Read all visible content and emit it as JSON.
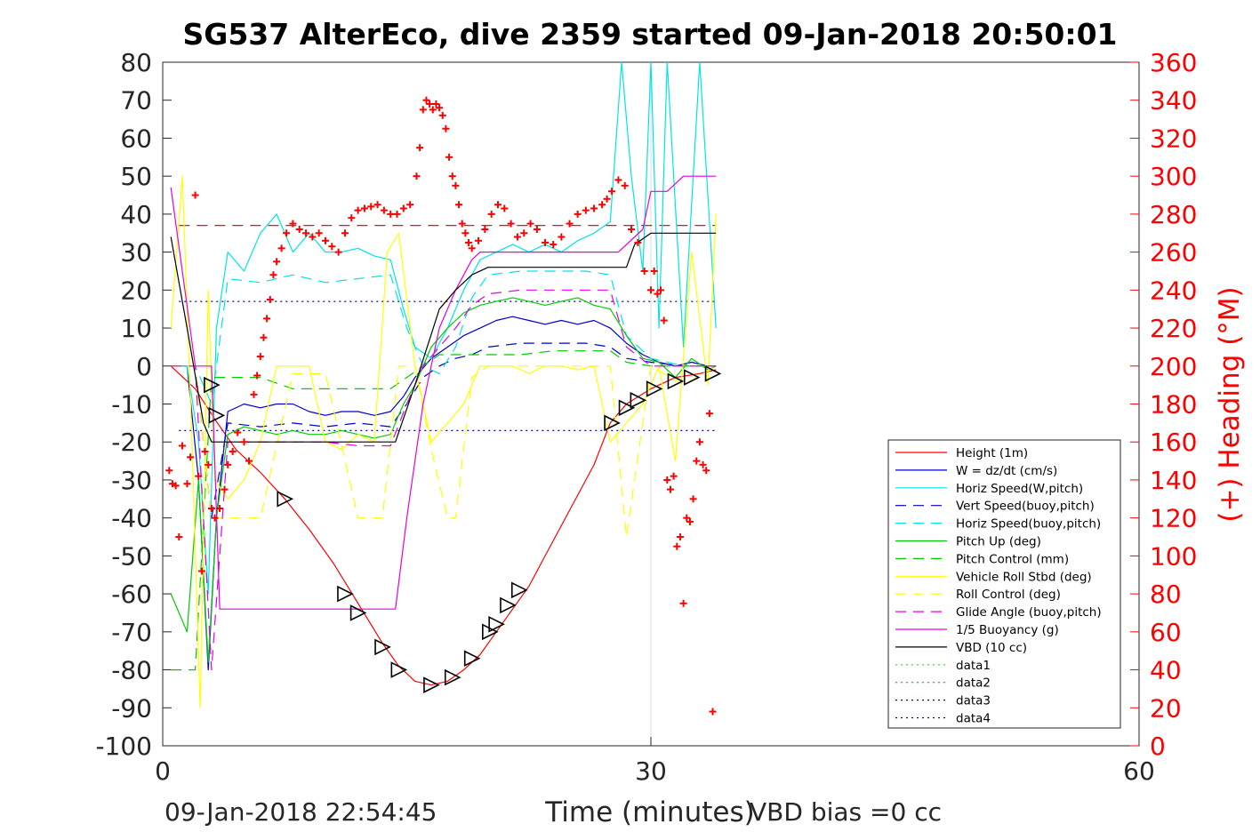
{
  "chart_data": {
    "type": "line",
    "title": "SG537 AlterEco, dive 2359 started 09-Jan-2018 20:50:01",
    "xlabel": "Time (minutes)",
    "ylabel": "",
    "y2label": "(+) Heading (°M)",
    "xlim": [
      0,
      60
    ],
    "ylim": [
      -100,
      80
    ],
    "y2lim": [
      0,
      360
    ],
    "xticks": [
      0,
      30,
      60
    ],
    "yticks": [
      -100,
      -90,
      -80,
      -70,
      -60,
      -50,
      -40,
      -30,
      -20,
      -10,
      0,
      10,
      20,
      30,
      40,
      50,
      60,
      70,
      80
    ],
    "y2ticks": [
      0,
      20,
      40,
      60,
      80,
      100,
      120,
      140,
      160,
      180,
      200,
      220,
      240,
      260,
      280,
      300,
      320,
      340,
      360
    ],
    "grid": "x-only at 30",
    "legend_position": "bottom-right",
    "footer_left": "09-Jan-2018 22:54:45",
    "footer_right": "VBD bias =0 cc",
    "colors": {
      "axis": "#262626",
      "heading": "#ff0000"
    },
    "series": [
      {
        "name": "Height (1m)",
        "color": "#ff0000",
        "dash": "solid",
        "x": [
          0.5,
          2,
          3.2,
          4.5,
          6,
          7.5,
          9,
          10.5,
          11.5,
          12.5,
          13.5,
          14.5,
          15.5,
          16.5,
          17.5,
          18.5,
          19.5,
          20.5,
          21.5,
          22.5,
          23.5,
          25,
          26.5,
          27.5,
          28.5,
          30,
          31.5,
          33,
          34
        ],
        "y": [
          0,
          -6,
          -14,
          -22,
          -28,
          -35,
          -43,
          -52,
          -59,
          -66,
          -73,
          -79,
          -83,
          -84,
          -83,
          -80,
          -76,
          -70,
          -64,
          -58,
          -50,
          -38,
          -26,
          -15,
          -10,
          -6,
          -3,
          -2,
          -1
        ]
      },
      {
        "name": "W = dz/dt (cm/s)",
        "color": "#0000cc",
        "dash": "solid",
        "x": [
          0.5,
          1.5,
          2.2,
          2.8,
          3.3,
          4,
          5,
          6,
          7,
          8,
          9,
          10,
          11,
          12,
          13,
          14,
          14.8,
          15.5,
          16.5,
          17.5,
          18.5,
          19.5,
          20.5,
          21.5,
          22.5,
          23.5,
          24.5,
          25.5,
          26.5,
          27.5,
          28.5,
          29.5,
          30.5,
          31.5,
          32.5,
          33.5,
          34
        ],
        "y": [
          0,
          0,
          -30,
          -80,
          -40,
          -12,
          -10,
          -11,
          -10,
          -10,
          -12,
          -13,
          -12,
          -12,
          -13,
          -12,
          -8,
          -3,
          2,
          5,
          8,
          10,
          12,
          13,
          12,
          11,
          12,
          11,
          12,
          10,
          6,
          3,
          1,
          0,
          1,
          0,
          0
        ]
      },
      {
        "name": "Horiz Speed(W,pitch)",
        "color": "#00e5e5",
        "dash": "solid",
        "x": [
          0.5,
          1.5,
          2.2,
          2.8,
          3.3,
          4,
          5,
          6,
          7,
          8,
          9,
          10,
          11,
          12,
          13,
          14,
          14.8,
          15.5,
          16.5,
          17.5,
          18.5,
          19.5,
          20.5,
          21.5,
          22.5,
          23.5,
          24.5,
          25.5,
          26.5,
          27.5,
          28.2,
          28.8,
          29.5,
          30,
          30.5,
          31,
          32,
          33,
          34
        ],
        "y": [
          0,
          0,
          -20,
          -60,
          10,
          30,
          25,
          35,
          40,
          30,
          35,
          30,
          30,
          31,
          29,
          28,
          15,
          5,
          2,
          10,
          20,
          28,
          30,
          32,
          30,
          32,
          30,
          33,
          35,
          38,
          80,
          50,
          25,
          80,
          10,
          80,
          5,
          80,
          10
        ]
      },
      {
        "name": "Vert Speed(buoy,pitch)",
        "color": "#0000cc",
        "dash": "dashed",
        "x": [
          0.5,
          2,
          3,
          4,
          6,
          8,
          10,
          12,
          14,
          15,
          16,
          17,
          18,
          19,
          20,
          22,
          24,
          26,
          27.5,
          28.5,
          30,
          32,
          34
        ],
        "y": [
          0,
          0,
          -40,
          -15,
          -16,
          -15,
          -16,
          -15,
          -16,
          -10,
          -3,
          0,
          2,
          3,
          5,
          6,
          6,
          6,
          5,
          2,
          1,
          0,
          0
        ]
      },
      {
        "name": "Horiz Speed(buoy,pitch)",
        "color": "#00e5e5",
        "dash": "dashed",
        "x": [
          0.5,
          2,
          3,
          4,
          6,
          8,
          10,
          12,
          14,
          15,
          16,
          17,
          18,
          19,
          20,
          22,
          24,
          26,
          27.5,
          28.5,
          30,
          32,
          34
        ],
        "y": [
          0,
          0,
          -10,
          23,
          22,
          24,
          22,
          23,
          24,
          10,
          0,
          -2,
          5,
          18,
          24,
          25,
          25,
          25,
          24,
          8,
          2,
          0,
          0
        ]
      },
      {
        "name": "Pitch Up (deg)",
        "color": "#00cc00",
        "dash": "solid",
        "x": [
          0.5,
          1.5,
          2.2,
          2.8,
          3.3,
          4,
          5,
          6,
          7,
          8,
          9,
          10,
          11,
          12,
          13,
          14,
          14.8,
          15.5,
          16.5,
          17.5,
          18.5,
          19.5,
          20.5,
          21.5,
          22.5,
          23.5,
          24.5,
          25.5,
          26.5,
          27.5,
          28.5,
          29.5,
          30.5,
          31.5,
          32.5,
          33.5,
          34
        ],
        "y": [
          -60,
          -70,
          -30,
          -78,
          -40,
          -18,
          -16,
          -17,
          -18,
          -17,
          -18,
          -18,
          -17,
          -18,
          -19,
          -18,
          -10,
          -5,
          5,
          10,
          14,
          16,
          17,
          18,
          17,
          16,
          17,
          18,
          16,
          15,
          8,
          2,
          1,
          -3,
          2,
          -1,
          0
        ]
      },
      {
        "name": "Pitch Control (mm)",
        "color": "#00cc00",
        "dash": "dashed",
        "x": [
          0.5,
          2,
          3,
          4,
          6,
          8,
          10,
          12,
          14,
          15,
          16,
          17,
          18,
          19,
          20,
          22,
          24,
          26,
          27.5,
          28.5,
          30,
          32,
          34
        ],
        "y": [
          -80,
          -80,
          -3,
          -3,
          -3,
          -6,
          -6,
          -6,
          -6,
          -3,
          0,
          3,
          3,
          3,
          3,
          3,
          4,
          4,
          4,
          1,
          0,
          0,
          0
        ]
      },
      {
        "name": "Vehicle Roll Stbd (deg)",
        "color": "#ffff00",
        "dash": "solid",
        "x": [
          0.5,
          1.2,
          1.8,
          2.3,
          2.8,
          3.2,
          4,
          5,
          6,
          7,
          8,
          9,
          10,
          11,
          12,
          13,
          13.8,
          14.5,
          15.5,
          16.5,
          17.5,
          18.5,
          19.5,
          20.5,
          21.5,
          22.5,
          23.5,
          24.5,
          25.5,
          26.5,
          27.5,
          28.5,
          29.5,
          30.5,
          31.5,
          32.5,
          33.5,
          34
        ],
        "y": [
          10,
          50,
          -20,
          -90,
          20,
          -30,
          -35,
          -30,
          -20,
          0,
          0,
          0,
          -20,
          -22,
          -18,
          -20,
          30,
          35,
          0,
          -20,
          -15,
          -10,
          0,
          0,
          0,
          -2,
          0,
          0,
          -1,
          0,
          -20,
          -15,
          -10,
          0,
          -25,
          30,
          -5,
          40
        ]
      },
      {
        "name": "Roll Control (deg)",
        "color": "#ffff00",
        "dash": "dashed",
        "x": [
          0.5,
          2,
          3,
          4,
          6,
          8,
          10,
          12,
          13.5,
          14.5,
          15.5,
          16.5,
          17.5,
          18,
          19,
          20,
          22,
          24,
          26,
          27.5,
          28.5,
          30,
          32,
          34
        ],
        "y": [
          0,
          0,
          -40,
          -40,
          -40,
          -2,
          -2,
          -40,
          -40,
          0,
          0,
          -22,
          -40,
          -40,
          -3,
          0,
          0,
          0,
          0,
          0,
          -45,
          0,
          -5,
          0
        ]
      },
      {
        "name": "Glide Angle (buoy,pitch)",
        "color": "#e600e6",
        "dash": "dashed",
        "x": [
          0.5,
          2,
          3,
          4,
          6,
          8,
          10,
          12,
          14,
          15,
          16,
          17,
          18,
          19,
          20,
          22,
          24,
          26,
          27.5,
          28.5,
          30,
          32,
          34
        ],
        "y": [
          0,
          0,
          -80,
          -20,
          -20,
          -20,
          -20,
          -21,
          -21,
          -10,
          0,
          5,
          10,
          16,
          19,
          20,
          20,
          20,
          20,
          5,
          0,
          0,
          0
        ]
      },
      {
        "name": "1/5 Buoyancy (g)",
        "color": "#e600e6",
        "dash": "solid",
        "x": [
          0.5,
          2,
          3,
          3.5,
          5,
          7,
          9,
          11,
          13,
          14.3,
          15,
          16,
          17,
          18,
          19,
          19.5,
          20,
          22,
          24,
          26,
          27.5,
          28,
          29.5,
          30,
          31,
          32,
          34
        ],
        "y": [
          47,
          0,
          0,
          -64,
          -64,
          -64,
          -64,
          -64,
          -64,
          -64,
          -40,
          -10,
          10,
          20,
          28,
          30,
          30,
          30,
          30,
          30,
          30,
          30,
          36,
          46,
          46,
          50,
          50
        ]
      },
      {
        "name": "VBD (10 cc)",
        "color": "#000000",
        "dash": "solid",
        "x": [
          0.5,
          1.5,
          2.5,
          3,
          5,
          7,
          9,
          11,
          13,
          14.3,
          15.5,
          17,
          18,
          19,
          20,
          22,
          24,
          26,
          27.5,
          28.5,
          29,
          30,
          34
        ],
        "y": [
          34,
          10,
          -15,
          -20,
          -20,
          -20,
          -20,
          -20,
          -20,
          -20,
          -5,
          15,
          20,
          24,
          26,
          26,
          26,
          26,
          26,
          26,
          32,
          35,
          35
        ]
      },
      {
        "name": "data1",
        "color": "#00ff00",
        "dash": "dotted",
        "x": [],
        "y": []
      },
      {
        "name": "data2",
        "color": "#00cc00",
        "dash": "dotted",
        "x": [],
        "y": []
      },
      {
        "name": "data3",
        "color": "#0000cc",
        "dash": "dotted",
        "x": [],
        "y": []
      },
      {
        "name": "data4",
        "color": "#0000cc",
        "dash": "dotted",
        "x": [],
        "y": []
      }
    ],
    "reference_lines": [
      {
        "axis": "y",
        "value": 37,
        "color": "#cc0000",
        "dash": "dashed",
        "xrange": [
          1,
          34
        ]
      },
      {
        "axis": "y",
        "value": 17,
        "color": "#0000cc",
        "dash": "dotted",
        "xrange": [
          1,
          34
        ]
      },
      {
        "axis": "y",
        "value": -17,
        "color": "#0000cc",
        "dash": "dotted",
        "xrange": [
          1,
          34
        ]
      }
    ],
    "heading": {
      "name": "(+) Heading",
      "axis": "right",
      "marker": "+",
      "color": "#ff0000",
      "x": [
        0.4,
        0.6,
        0.8,
        1.0,
        1.2,
        1.5,
        1.7,
        2.0,
        2.2,
        2.4,
        2.6,
        2.8,
        3.0,
        3.2,
        3.5,
        3.8,
        4.0,
        4.3,
        4.6,
        5.0,
        5.3,
        5.6,
        5.8,
        6.0,
        6.2,
        6.4,
        6.6,
        6.8,
        7.0,
        7.3,
        7.6,
        8.0,
        8.4,
        8.8,
        9.2,
        9.6,
        10.0,
        10.4,
        10.8,
        11.2,
        11.6,
        12.0,
        12.4,
        12.8,
        13.2,
        13.6,
        14.0,
        14.4,
        14.8,
        15.2,
        15.6,
        15.8,
        16.0,
        16.2,
        16.4,
        16.6,
        16.8,
        17.0,
        17.2,
        17.4,
        17.6,
        17.8,
        18.0,
        18.2,
        18.4,
        18.6,
        18.8,
        19.0,
        19.4,
        19.8,
        20.2,
        20.6,
        21.0,
        21.4,
        21.8,
        22.2,
        22.6,
        23.0,
        23.5,
        24.0,
        24.5,
        25.0,
        25.5,
        26.0,
        26.5,
        27.0,
        27.3,
        27.6,
        28.0,
        28.4,
        28.8,
        29.2,
        29.6,
        30.0,
        30.2,
        30.4,
        30.6,
        30.8,
        31.0,
        31.2,
        31.4,
        31.6,
        31.8,
        32.0,
        32.2,
        32.4,
        32.6,
        32.8,
        33.0,
        33.2,
        33.4,
        33.6,
        33.8
      ],
      "y": [
        145,
        138,
        137,
        110,
        158,
        138,
        152,
        290,
        142,
        92,
        155,
        148,
        125,
        120,
        125,
        135,
        148,
        155,
        165,
        160,
        150,
        185,
        195,
        205,
        215,
        225,
        235,
        248,
        255,
        262,
        270,
        275,
        272,
        270,
        268,
        270,
        266,
        263,
        260,
        270,
        278,
        282,
        283,
        284,
        285,
        282,
        280,
        280,
        283,
        285,
        300,
        315,
        335,
        340,
        338,
        335,
        338,
        336,
        332,
        325,
        310,
        300,
        295,
        285,
        275,
        270,
        265,
        262,
        266,
        272,
        280,
        285,
        283,
        275,
        268,
        270,
        275,
        272,
        265,
        264,
        268,
        275,
        280,
        282,
        283,
        285,
        288,
        292,
        298,
        295,
        272,
        265,
        250,
        240,
        250,
        238,
        240,
        224,
        140,
        135,
        142,
        105,
        110,
        75,
        120,
        118,
        130,
        150,
        160,
        148,
        145,
        175,
        18
      ]
    },
    "glider_markers": {
      "description": "triangle markers along Height trace",
      "color": "#000000",
      "x": [
        3,
        3.3,
        7.5,
        11.2,
        12,
        13.5,
        14.5,
        16.5,
        17.8,
        19,
        20.1,
        20.5,
        21.2,
        21.9,
        27.6,
        28.5,
        29.2,
        30.2,
        31.5,
        32.5,
        33.8
      ],
      "y": [
        -5,
        -13,
        -35,
        -60,
        -65,
        -74,
        -80,
        -84,
        -82,
        -77,
        -70,
        -68,
        -63,
        -59,
        -15,
        -11,
        -9,
        -6,
        -4,
        -3,
        -2
      ]
    }
  }
}
